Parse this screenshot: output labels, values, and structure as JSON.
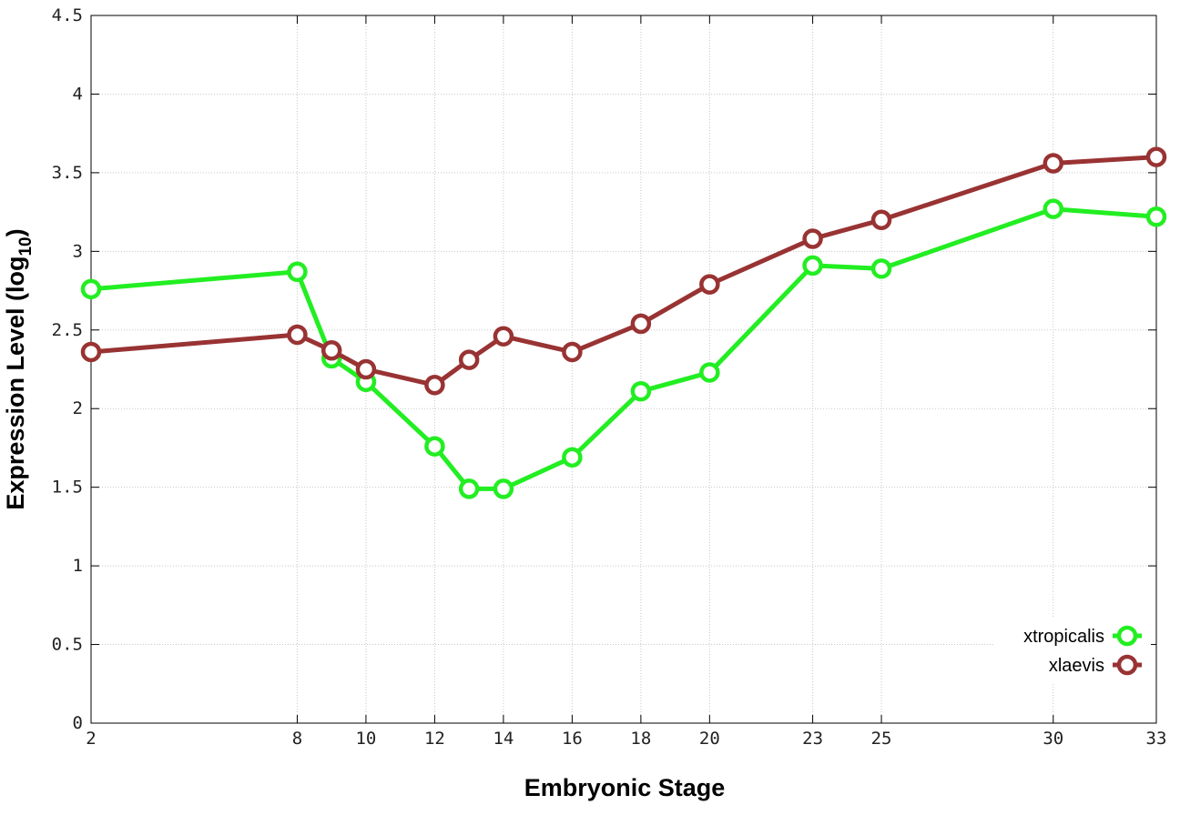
{
  "chart_data": {
    "type": "line",
    "xlabel": "Embryonic Stage",
    "ylabel": "Expression Level (log",
    "ylabel_subscript": "10",
    "ylabel_close": ")",
    "x": [
      2,
      8,
      9,
      10,
      12,
      13,
      14,
      16,
      18,
      20,
      23,
      25,
      30,
      33
    ],
    "x_ticks": [
      2,
      8,
      10,
      12,
      14,
      16,
      18,
      20,
      23,
      25,
      30,
      33
    ],
    "x_tick_labels": [
      "2",
      "8",
      "10",
      "12",
      "14",
      "16",
      "18",
      "20",
      "23",
      "25",
      "30",
      "33"
    ],
    "y_ticks": [
      0,
      0.5,
      1,
      1.5,
      2,
      2.5,
      3,
      3.5,
      4,
      4.5
    ],
    "y_tick_labels": [
      "0",
      "0.5",
      "1",
      "1.5",
      "2",
      "2.5",
      "3",
      "3.5",
      "4",
      "4.5"
    ],
    "xlim": [
      2,
      33
    ],
    "ylim": [
      0,
      4.5
    ],
    "grid": true,
    "legend_position": "bottom-right",
    "series": [
      {
        "name": "xtropicalis",
        "color": "#22ee22",
        "values": [
          2.76,
          2.87,
          2.32,
          2.17,
          1.76,
          1.49,
          1.49,
          1.69,
          2.11,
          2.23,
          2.91,
          2.89,
          3.27,
          3.22
        ]
      },
      {
        "name": "xlaevis",
        "color": "#993333",
        "values": [
          2.36,
          2.47,
          2.37,
          2.25,
          2.15,
          2.31,
          2.46,
          2.36,
          2.54,
          2.79,
          3.08,
          3.2,
          3.56,
          3.6
        ]
      }
    ]
  }
}
